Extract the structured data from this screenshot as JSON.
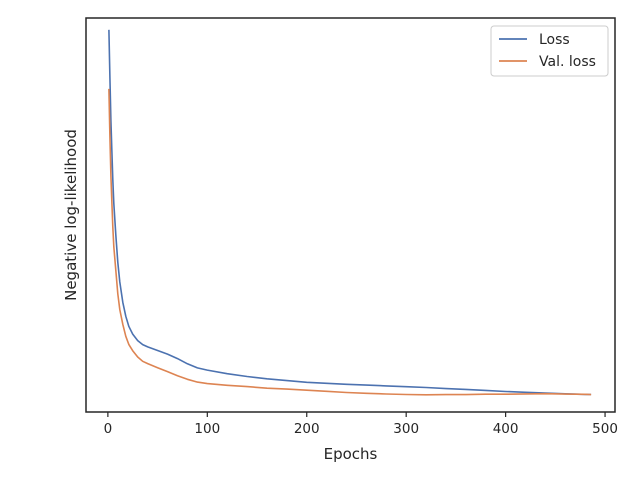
{
  "chart_data": {
    "type": "line",
    "xlabel": "Epochs",
    "ylabel": "Negative log-likelihood",
    "xlim": [
      -22,
      510
    ],
    "ylim": [
      0.0,
      1.0
    ],
    "y_ticks_shown": false,
    "x_ticks": [
      0,
      100,
      200,
      300,
      400,
      500
    ],
    "x_tick_labels": [
      "0",
      "100",
      "200",
      "300",
      "400",
      "500"
    ],
    "grid": false,
    "legend_placement": "top-right",
    "series": [
      {
        "name": "Loss",
        "color": "#4c72b0",
        "x": [
          1,
          2,
          3,
          4,
          5,
          6,
          8,
          10,
          12,
          15,
          18,
          21,
          25,
          30,
          35,
          40,
          50,
          60,
          70,
          80,
          90,
          100,
          120,
          140,
          160,
          180,
          200,
          220,
          240,
          260,
          280,
          300,
          320,
          340,
          360,
          380,
          400,
          420,
          440,
          460,
          480,
          486
        ],
        "y": [
          0.97,
          0.85,
          0.74,
          0.66,
          0.59,
          0.53,
          0.45,
          0.38,
          0.33,
          0.28,
          0.245,
          0.22,
          0.2,
          0.183,
          0.172,
          0.165,
          0.155,
          0.145,
          0.133,
          0.12,
          0.11,
          0.105,
          0.097,
          0.091,
          0.086,
          0.082,
          0.078,
          0.075,
          0.072,
          0.069,
          0.066,
          0.063,
          0.06,
          0.057,
          0.055,
          0.053,
          0.051,
          0.05,
          0.049,
          0.048,
          0.047,
          0.047
        ]
      },
      {
        "name": "Val. loss",
        "color": "#dd8452",
        "x": [
          1,
          2,
          3,
          4,
          5,
          6,
          8,
          10,
          12,
          15,
          18,
          21,
          25,
          30,
          35,
          40,
          50,
          60,
          70,
          80,
          90,
          100,
          120,
          140,
          160,
          180,
          200,
          220,
          240,
          260,
          280,
          300,
          320,
          340,
          360,
          380,
          400,
          420,
          440,
          460,
          480,
          486
        ],
        "y": [
          0.82,
          0.7,
          0.6,
          0.53,
          0.47,
          0.42,
          0.36,
          0.3,
          0.26,
          0.22,
          0.19,
          0.17,
          0.155,
          0.14,
          0.13,
          0.125,
          0.115,
          0.105,
          0.094,
          0.084,
          0.076,
          0.071,
          0.066,
          0.062,
          0.058,
          0.056,
          0.054,
          0.052,
          0.05,
          0.049,
          0.048,
          0.047,
          0.046,
          0.046,
          0.045,
          0.045,
          0.044,
          0.044,
          0.044,
          0.043,
          0.043,
          0.043
        ]
      }
    ]
  }
}
